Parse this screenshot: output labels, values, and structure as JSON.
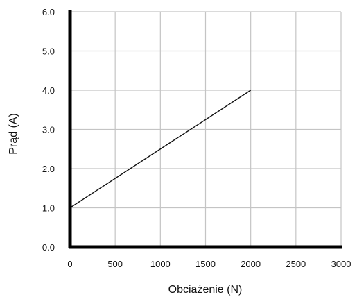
{
  "chart_data": {
    "type": "line",
    "xlabel": "Obciażenie (N)",
    "ylabel": "Prąd (A)",
    "xlim": [
      0,
      3000
    ],
    "ylim": [
      0,
      6
    ],
    "x_ticks": [
      0,
      500,
      1000,
      1500,
      2000,
      2500,
      3000
    ],
    "x_tick_labels": [
      "0",
      "500",
      "1000",
      "1500",
      "2000",
      "2500",
      "3000"
    ],
    "y_ticks": [
      0,
      1,
      2,
      3,
      4,
      5,
      6
    ],
    "y_tick_labels": [
      "0.0",
      "1.0",
      "2.0",
      "3.0",
      "4.0",
      "5.0",
      "6.0"
    ],
    "grid": true,
    "legend": "none",
    "series": [
      {
        "x": [
          0,
          2000
        ],
        "y": [
          1.0,
          4.0
        ],
        "color": "#111111"
      }
    ]
  }
}
